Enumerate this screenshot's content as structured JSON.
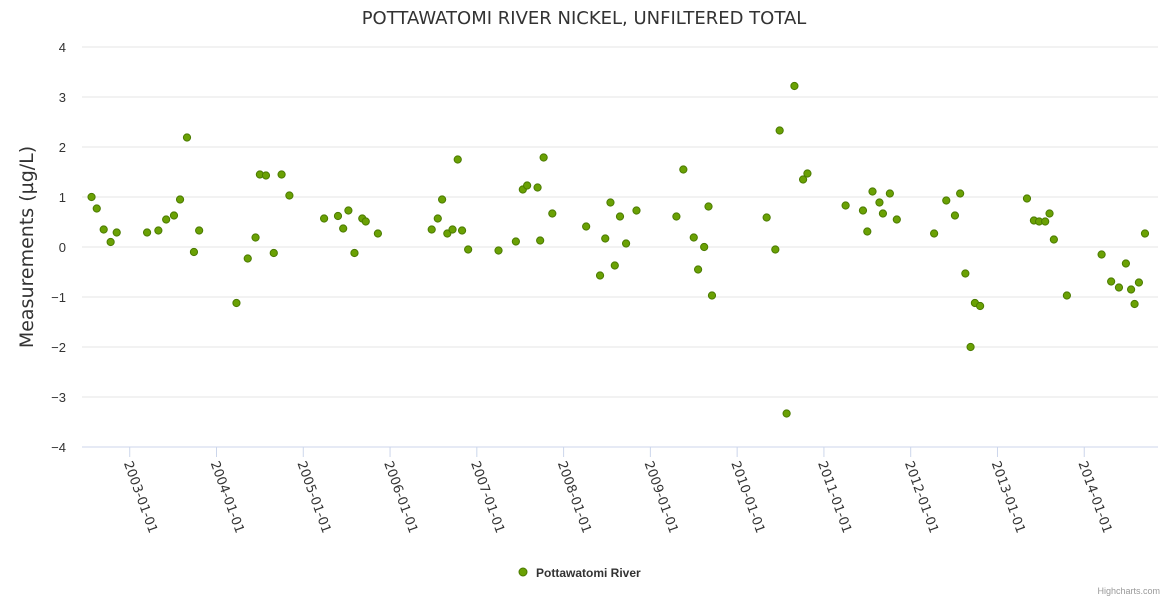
{
  "chart_data": {
    "type": "scatter",
    "title": "POTTAWATOMI RIVER NICKEL, UNFILTERED TOTAL",
    "ylabel": "Measurements (µg/L)",
    "xlabel": "",
    "ylim": [
      -4,
      4
    ],
    "yticks": [
      4,
      3,
      2,
      1,
      0,
      -1,
      -2,
      -3,
      -4
    ],
    "xlim": [
      2002.45,
      2014.85
    ],
    "xticks": [
      {
        "label": "2003-01-01",
        "value": 2003
      },
      {
        "label": "2004-01-01",
        "value": 2004
      },
      {
        "label": "2005-01-01",
        "value": 2005
      },
      {
        "label": "2006-01-01",
        "value": 2006
      },
      {
        "label": "2007-01-01",
        "value": 2007
      },
      {
        "label": "2008-01-01",
        "value": 2008
      },
      {
        "label": "2009-01-01",
        "value": 2009
      },
      {
        "label": "2010-01-01",
        "value": 2010
      },
      {
        "label": "2011-01-01",
        "value": 2011
      },
      {
        "label": "2012-01-01",
        "value": 2012
      },
      {
        "label": "2013-01-01",
        "value": 2013
      },
      {
        "label": "2014-01-01",
        "value": 2014
      }
    ],
    "grid": true,
    "legend": "bottom-center",
    "color": "#6aa104",
    "series": [
      {
        "name": "Pottawatomi River",
        "points": [
          [
            2002.56,
            1.0
          ],
          [
            2002.62,
            0.77
          ],
          [
            2002.7,
            0.35
          ],
          [
            2002.78,
            0.1
          ],
          [
            2002.85,
            0.29
          ],
          [
            2003.2,
            0.29
          ],
          [
            2003.33,
            0.33
          ],
          [
            2003.42,
            0.55
          ],
          [
            2003.51,
            0.63
          ],
          [
            2003.58,
            0.95
          ],
          [
            2003.66,
            2.19
          ],
          [
            2003.74,
            -0.1
          ],
          [
            2003.8,
            0.33
          ],
          [
            2004.23,
            -1.12
          ],
          [
            2004.36,
            -0.23
          ],
          [
            2004.45,
            0.19
          ],
          [
            2004.5,
            1.45
          ],
          [
            2004.57,
            1.43
          ],
          [
            2004.66,
            -0.12
          ],
          [
            2004.75,
            1.45
          ],
          [
            2004.84,
            1.03
          ],
          [
            2005.24,
            0.57
          ],
          [
            2005.4,
            0.62
          ],
          [
            2005.46,
            0.37
          ],
          [
            2005.52,
            0.73
          ],
          [
            2005.59,
            -0.12
          ],
          [
            2005.68,
            0.57
          ],
          [
            2005.72,
            0.51
          ],
          [
            2005.86,
            0.27
          ],
          [
            2006.48,
            0.35
          ],
          [
            2006.55,
            0.57
          ],
          [
            2006.6,
            0.95
          ],
          [
            2006.66,
            0.27
          ],
          [
            2006.72,
            0.35
          ],
          [
            2006.78,
            1.75
          ],
          [
            2006.83,
            0.33
          ],
          [
            2006.9,
            -0.05
          ],
          [
            2007.25,
            -0.07
          ],
          [
            2007.45,
            0.11
          ],
          [
            2007.53,
            1.15
          ],
          [
            2007.58,
            1.23
          ],
          [
            2007.7,
            1.19
          ],
          [
            2007.73,
            0.13
          ],
          [
            2007.77,
            1.79
          ],
          [
            2007.87,
            0.67
          ],
          [
            2008.26,
            0.41
          ],
          [
            2008.42,
            -0.57
          ],
          [
            2008.48,
            0.17
          ],
          [
            2008.54,
            0.89
          ],
          [
            2008.59,
            -0.37
          ],
          [
            2008.65,
            0.61
          ],
          [
            2008.72,
            0.07
          ],
          [
            2008.84,
            0.73
          ],
          [
            2009.3,
            0.61
          ],
          [
            2009.38,
            1.55
          ],
          [
            2009.5,
            0.19
          ],
          [
            2009.55,
            -0.45
          ],
          [
            2009.62,
            0.0
          ],
          [
            2009.67,
            0.81
          ],
          [
            2009.71,
            -0.97
          ],
          [
            2010.34,
            0.59
          ],
          [
            2010.44,
            -0.05
          ],
          [
            2010.49,
            2.33
          ],
          [
            2010.57,
            -3.33
          ],
          [
            2010.66,
            3.22
          ],
          [
            2010.76,
            1.35
          ],
          [
            2010.81,
            1.47
          ],
          [
            2011.25,
            0.83
          ],
          [
            2011.45,
            0.73
          ],
          [
            2011.5,
            0.31
          ],
          [
            2011.56,
            1.11
          ],
          [
            2011.64,
            0.89
          ],
          [
            2011.68,
            0.67
          ],
          [
            2011.76,
            1.07
          ],
          [
            2011.84,
            0.55
          ],
          [
            2012.27,
            0.27
          ],
          [
            2012.41,
            0.93
          ],
          [
            2012.51,
            0.63
          ],
          [
            2012.57,
            1.07
          ],
          [
            2012.63,
            -0.53
          ],
          [
            2012.69,
            -2.0
          ],
          [
            2012.74,
            -1.12
          ],
          [
            2012.8,
            -1.18
          ],
          [
            2013.34,
            0.97
          ],
          [
            2013.42,
            0.53
          ],
          [
            2013.48,
            0.51
          ],
          [
            2013.55,
            0.51
          ],
          [
            2013.6,
            0.67
          ],
          [
            2013.65,
            0.15
          ],
          [
            2013.8,
            -0.97
          ],
          [
            2014.2,
            -0.15
          ],
          [
            2014.31,
            -0.69
          ],
          [
            2014.4,
            -0.81
          ],
          [
            2014.48,
            -0.33
          ],
          [
            2014.54,
            -0.85
          ],
          [
            2014.58,
            -1.14
          ],
          [
            2014.63,
            -0.71
          ],
          [
            2014.7,
            0.27
          ]
        ]
      }
    ]
  },
  "legend": {
    "label": "Pottawatomi River"
  },
  "credits": "Highcharts.com"
}
